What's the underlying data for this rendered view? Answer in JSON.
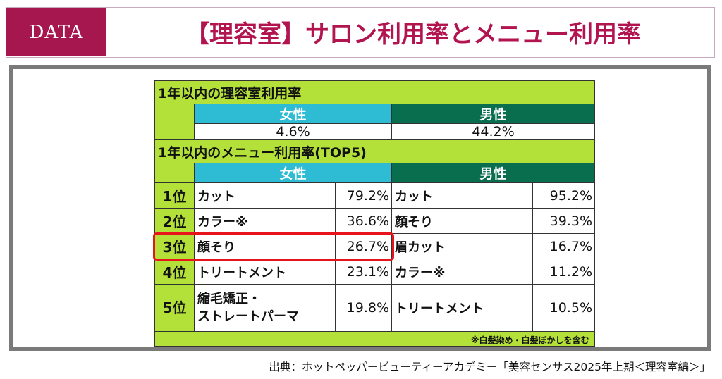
{
  "header": {
    "badge": "DATA",
    "title": "【理容室】サロン利用率とメニュー利用率"
  },
  "usage": {
    "title": "1年以内の理容室利用率",
    "female_label": "女性",
    "male_label": "男性",
    "female_value": "4.6%",
    "male_value": "44.2%"
  },
  "menu": {
    "title": "1年以内のメニュー利用率(TOP5)",
    "female_label": "女性",
    "male_label": "男性",
    "rows": [
      {
        "rank": "1位",
        "female_item": "カット",
        "female_pct": "79.2%",
        "male_item": "カット",
        "male_pct": "95.2%"
      },
      {
        "rank": "2位",
        "female_item": "カラー※",
        "female_pct": "36.6%",
        "male_item": "顔そり",
        "male_pct": "39.3%"
      },
      {
        "rank": "3位",
        "female_item": "顔そり",
        "female_pct": "26.7%",
        "male_item": "眉カット",
        "male_pct": "16.7%"
      },
      {
        "rank": "4位",
        "female_item": "トリートメント",
        "female_pct": "23.1%",
        "male_item": "カラー※",
        "male_pct": "11.2%"
      },
      {
        "rank": "5位",
        "female_item_line1": "縮毛矯正・",
        "female_item_line2": "ストレートパーマ",
        "female_pct": "19.8%",
        "male_item": "トリートメント",
        "male_pct": "10.5%"
      }
    ],
    "note": "※白髪染め・白髪ぼかしを含む"
  },
  "source": "出典：ホットペッパービューティーアカデミー「美容センサス2025年上期＜理容室編＞」",
  "colors": {
    "brand": "#a7174f",
    "lime": "#b4e03a",
    "female": "#2dbcd3",
    "male": "#086e4e",
    "highlight": "#e8141b"
  }
}
